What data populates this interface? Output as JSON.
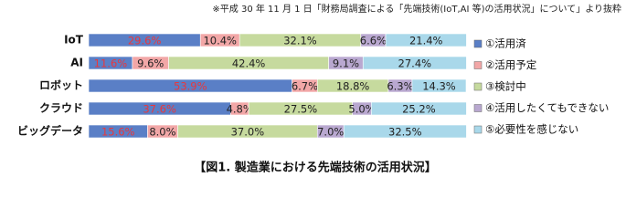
{
  "chart_data": {
    "type": "stacked_bar_horizontal",
    "source_note": "※平成 30 年 11 月 1 日「財務局調査による「先端技術(IoT,AI 等)の活用状況」について」より抜粋",
    "title": "【図1. 製造業における先端技術の活用状況】",
    "categories": [
      "IoT",
      "AI",
      "ロボット",
      "クラウド",
      "ビッグデータ"
    ],
    "xlim": [
      0,
      100
    ],
    "series": [
      {
        "name": "①活用済",
        "color": "#5a7fc6",
        "label_color": "#e8383d",
        "values": [
          29.6,
          11.6,
          53.9,
          37.6,
          15.6
        ],
        "value_labels": [
          "29.6%",
          "11.6%",
          "53.9%",
          "37.6%",
          "15.6%"
        ]
      },
      {
        "name": "②活用予定",
        "color": "#f2a7a7",
        "label_color": "#222222",
        "values": [
          10.4,
          9.6,
          6.7,
          4.8,
          8.0
        ],
        "value_labels": [
          "10.4%",
          "9.6%",
          "6.7%",
          "4.8%",
          "8.0%"
        ]
      },
      {
        "name": "③検討中",
        "color": "#c6da9e",
        "label_color": "#222222",
        "values": [
          32.1,
          42.4,
          18.8,
          27.5,
          37.0
        ],
        "value_labels": [
          "32.1%",
          "42.4%",
          "18.8%",
          "27.5%",
          "37.0%"
        ]
      },
      {
        "name": "④活用したくてもできない",
        "color": "#b9a8d0",
        "label_color": "#222222",
        "values": [
          6.6,
          9.1,
          6.3,
          5.0,
          7.0
        ],
        "value_labels": [
          "6.6%",
          "9.1%",
          "6.3%",
          "5.0%",
          "7.0%"
        ]
      },
      {
        "name": "⑤必要性を感じない",
        "color": "#a9d8ea",
        "label_color": "#222222",
        "values": [
          21.4,
          27.4,
          14.3,
          25.2,
          32.5
        ],
        "value_labels": [
          "21.4%",
          "27.4%",
          "14.3%",
          "25.2%",
          "32.5%"
        ]
      }
    ]
  }
}
